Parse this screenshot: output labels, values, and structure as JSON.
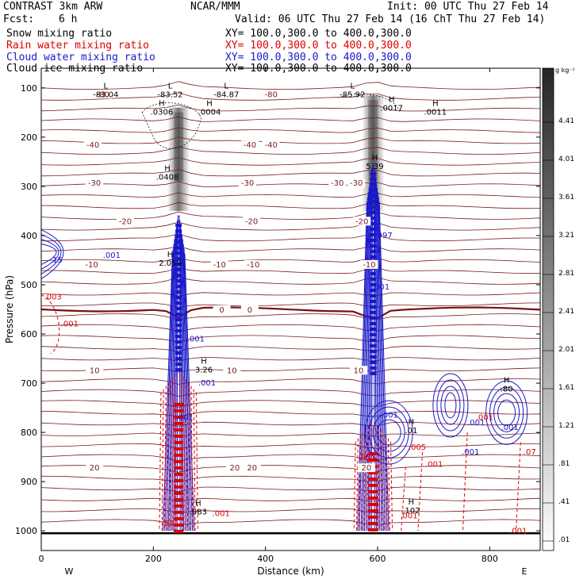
{
  "header": {
    "model": "CONTRAST  3km ARW",
    "center": "NCAR/MMM",
    "init": "Init: 00 UTC Thu 27 Feb 14",
    "fcst_label": "Fcst:",
    "fcst_value": "6 h",
    "valid": "Valid: 06 UTC Thu 27 Feb 14 (16 ChT Thu 27 Feb 14)",
    "fields": [
      {
        "name": "Snow mixing ratio",
        "color": "#000000",
        "xy": "XY= 100.0,300.0 to 400.0,300.0"
      },
      {
        "name": "Rain water mixing ratio",
        "color": "#e00000",
        "xy": "XY= 100.0,300.0 to 400.0,300.0"
      },
      {
        "name": "Cloud water mixing ratio",
        "color": "#1818c8",
        "xy": "XY= 100.0,300.0 to 400.0,300.0"
      },
      {
        "name": "Cloud ice mixing ratio",
        "color": "#000000",
        "xy": "XY= 100.0,300.0 to 400.0,300.0"
      }
    ]
  },
  "colorbar": {
    "unit": "g kg⁻¹",
    "labels": [
      "4.41",
      "4.01",
      "3.61",
      "3.21",
      "2.81",
      "2.41",
      "2.01",
      "1.61",
      "1.21",
      ".81",
      ".41",
      ".01"
    ]
  },
  "chart_data": {
    "type": "contour-cross-section",
    "xlabel": "Distance (km)",
    "ylabel": "Pressure (hPa)",
    "xlim": [
      0,
      890
    ],
    "ylim": [
      1040,
      60
    ],
    "xticks": [
      0,
      200,
      400,
      600,
      800
    ],
    "yticks": [
      100,
      200,
      300,
      400,
      500,
      600,
      700,
      800,
      900,
      1000
    ],
    "x_end_labels": {
      "left": "W",
      "right": "E"
    },
    "colors": {
      "temperature": "#7a1a1a",
      "rain": "#e00000",
      "cloud_water": "#1818c8",
      "snow": "#000000",
      "zero_isotherm": "#7a1010"
    },
    "isotherms": [
      {
        "label": "-80",
        "p": 112,
        "label_x": [
          110,
          410
        ]
      },
      {
        "label": "-40",
        "p": 215,
        "label_x": [
          92,
          372,
          410
        ]
      },
      {
        "label": "-30",
        "p": 292,
        "label_x": [
          95,
          368,
          528,
          562
        ]
      },
      {
        "label": "-20",
        "p": 370,
        "label_x": [
          150,
          375,
          572
        ]
      },
      {
        "label": "-10",
        "p": 458,
        "label_x": [
          90,
          318,
          378,
          585
        ]
      },
      {
        "label": "0",
        "p": 550,
        "label_x": [
          322,
          372
        ]
      },
      {
        "label": "10",
        "p": 673,
        "label_x": [
          95,
          340,
          566
        ]
      },
      {
        "label": "20",
        "p": 871,
        "label_x": [
          95,
          345,
          376,
          580
        ]
      }
    ],
    "extrema": [
      {
        "type": "L",
        "value": "-83.04",
        "x": 115,
        "p": 112
      },
      {
        "type": "L",
        "value": "-83.52",
        "x": 230,
        "p": 112
      },
      {
        "type": "L",
        "value": "-84.87",
        "x": 330,
        "p": 112
      },
      {
        "type": "L",
        "value": "-85.92",
        "x": 555,
        "p": 112
      },
      {
        "type": "H",
        "value": ".0306",
        "x": 215,
        "p": 148
      },
      {
        "type": "H",
        "value": ".0004",
        "x": 300,
        "p": 148
      },
      {
        "type": "H",
        "value": ".0017",
        "x": 625,
        "p": 140
      },
      {
        "type": "H",
        "value": ".0011",
        "x": 703,
        "p": 148
      },
      {
        "type": "H",
        "value": ".0408",
        "x": 225,
        "p": 280
      },
      {
        "type": "H",
        "value": "5.39",
        "x": 595,
        "p": 258
      },
      {
        "type": "H",
        "value": "2.059",
        "x": 230,
        "p": 455
      },
      {
        "type": "H",
        "value": "3.26",
        "x": 290,
        "p": 672
      },
      {
        "type": "H",
        "value": ".80",
        "x": 830,
        "p": 710
      },
      {
        "type": "H",
        "value": ".01",
        "x": 660,
        "p": 795
      },
      {
        "type": "H",
        "value": ".102",
        "x": 660,
        "p": 958
      },
      {
        "type": "H",
        "value": ".083",
        "x": 280,
        "p": 960
      }
    ],
    "rain_labels": [
      {
        "value": ".003",
        "x": 5,
        "p": 530
      },
      {
        "value": ".001",
        "x": 35,
        "p": 585
      },
      {
        "value": ".001",
        "x": 215,
        "p": 990
      },
      {
        "value": ".001",
        "x": 305,
        "p": 970
      },
      {
        "value": ".001",
        "x": 565,
        "p": 855
      },
      {
        "value": ".005",
        "x": 655,
        "p": 835
      },
      {
        "value": ".001",
        "x": 685,
        "p": 870
      },
      {
        "value": ".001",
        "x": 640,
        "p": 975
      },
      {
        "value": ".001",
        "x": 775,
        "p": 775
      },
      {
        "value": ".07",
        "x": 860,
        "p": 845
      },
      {
        "value": ".001",
        "x": 835,
        "p": 1005
      }
    ],
    "cloud_labels": [
      {
        "value": ".001",
        "x": 110,
        "p": 445
      },
      {
        "value": "15",
        "x": 20,
        "p": 455
      },
      {
        "value": ".001",
        "x": 260,
        "p": 615
      },
      {
        "value": ".001",
        "x": 280,
        "p": 705
      },
      {
        "value": ".001",
        "x": 240,
        "p": 775
      },
      {
        "value": ".001",
        "x": 760,
        "p": 785
      },
      {
        "value": ".001",
        "x": 605,
        "p": 770
      },
      {
        "value": ".001",
        "x": 750,
        "p": 845
      },
      {
        "value": ".001",
        "x": 820,
        "p": 795
      },
      {
        "value": ".997",
        "x": 595,
        "p": 405
      },
      {
        "value": ".001",
        "x": 590,
        "p": 510
      }
    ],
    "convective_columns": [
      {
        "x_center": 245,
        "top_p": 140,
        "blue_top_p": 360,
        "red_top_p": 680
      },
      {
        "x_center": 592,
        "top_p": 115,
        "blue_top_p": 255,
        "red_top_p": 780
      }
    ]
  }
}
